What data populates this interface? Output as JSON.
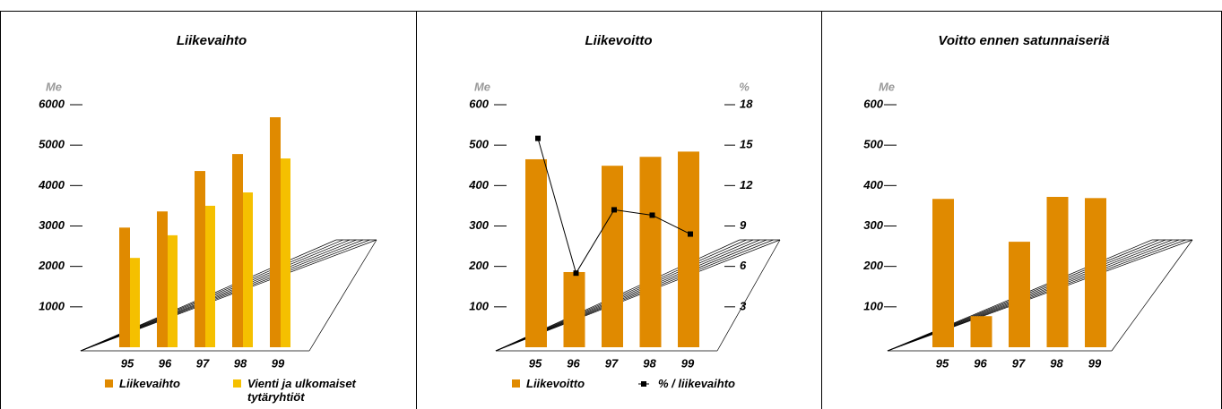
{
  "chart_data": [
    {
      "type": "bar",
      "title": "Liikevaihto",
      "y_label": "Me",
      "categories": [
        "95",
        "96",
        "97",
        "98",
        "99"
      ],
      "series": [
        {
          "name": "Liikevaihto",
          "color": "#e08a00",
          "values": [
            2960,
            3360,
            4360,
            4780,
            5690
          ]
        },
        {
          "name": "Vienti ja ulkomaiset tytäryhtiöt",
          "color": "#f5c000",
          "values": [
            2210,
            2770,
            3500,
            3830,
            4670
          ]
        }
      ],
      "ylim": [
        0,
        6000
      ],
      "yticks": [
        1000,
        2000,
        3000,
        4000,
        5000,
        6000
      ]
    },
    {
      "type": "bar",
      "title": "Liikevoitto",
      "y_label": "Me",
      "y2_label": "%",
      "categories": [
        "95",
        "96",
        "97",
        "98",
        "99"
      ],
      "series": [
        {
          "name": "Liikevoitto",
          "color": "#e08a00",
          "values": [
            465,
            186,
            449,
            471,
            484
          ]
        },
        {
          "name": "% / liikevaihto",
          "type": "line",
          "axis": "y2",
          "color": "#000000",
          "values": [
            15.5,
            5.5,
            10.2,
            9.8,
            8.4
          ]
        }
      ],
      "ylim": [
        0,
        600
      ],
      "yticks": [
        100,
        200,
        300,
        400,
        500,
        600
      ],
      "y2lim": [
        0,
        18
      ],
      "y2ticks": [
        3,
        6,
        9,
        12,
        15,
        18
      ]
    },
    {
      "type": "bar",
      "title": "Voitto ennen satunnaiseriä",
      "y_label": "Me",
      "categories": [
        "95",
        "96",
        "97",
        "98",
        "99"
      ],
      "values": [
        367,
        77,
        261,
        372,
        369
      ],
      "color": "#e08a00",
      "ylim": [
        0,
        600
      ],
      "yticks": [
        100,
        200,
        300,
        400,
        500,
        600
      ]
    }
  ]
}
